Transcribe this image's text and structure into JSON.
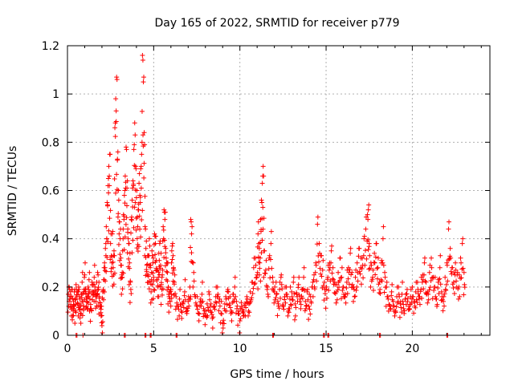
{
  "chart_data": {
    "type": "scatter",
    "title": "Day 165 of 2022, SRMTID for receiver p779",
    "xlabel": "GPS time / hours",
    "ylabel": "SRMTID / TECUs",
    "xlim": [
      0,
      24.5
    ],
    "ylim": [
      0,
      1.2
    ],
    "xticks": [
      0,
      5,
      10,
      15,
      20
    ],
    "xtick_labels": [
      "0",
      "5",
      "10",
      "15",
      "20"
    ],
    "yticks": [
      0,
      0.2,
      0.4,
      0.6,
      0.8,
      1.0,
      1.2
    ],
    "ytick_labels": [
      "0",
      "0.2",
      "0.4",
      "0.6",
      "0.8",
      "1",
      "1.2"
    ],
    "grid": true,
    "marker": "+",
    "marker_color": "#ff0000",
    "series": [
      {
        "name": "SRMTID",
        "points": [
          [
            0.05,
            0.17
          ],
          [
            0.1,
            0.2
          ],
          [
            0.15,
            0.15
          ],
          [
            0.2,
            0.12
          ],
          [
            0.25,
            0.19
          ],
          [
            0.3,
            0.08
          ],
          [
            0.35,
            0.14
          ],
          [
            0.4,
            0.18
          ],
          [
            0.45,
            0.1
          ],
          [
            0.5,
            0.21
          ],
          [
            0.55,
            0.16
          ],
          [
            0.6,
            0.13
          ],
          [
            0.65,
            0.2
          ],
          [
            0.7,
            0.12
          ],
          [
            0.75,
            0.09
          ],
          [
            0.8,
            0.17
          ],
          [
            0.85,
            0.22
          ],
          [
            0.9,
            0.14
          ],
          [
            0.95,
            0.18
          ],
          [
            1.0,
            0.25
          ],
          [
            1.05,
            0.19
          ],
          [
            1.1,
            0.12
          ],
          [
            1.15,
            0.16
          ],
          [
            1.2,
            0.2
          ],
          [
            1.25,
            0.23
          ],
          [
            1.3,
            0.15
          ],
          [
            1.35,
            0.11
          ],
          [
            1.4,
            0.18
          ],
          [
            1.45,
            0.21
          ],
          [
            1.5,
            0.17
          ],
          [
            1.55,
            0.24
          ],
          [
            1.6,
            0.2
          ],
          [
            1.65,
            0.14
          ],
          [
            1.7,
            0.22
          ],
          [
            1.75,
            0.26
          ],
          [
            1.8,
            0.19
          ],
          [
            1.85,
            0.16
          ],
          [
            1.9,
            0.12
          ],
          [
            1.95,
            0.08
          ],
          [
            2.0,
            0.04
          ],
          [
            2.05,
            0.18
          ],
          [
            2.1,
            0.23
          ],
          [
            2.15,
            0.3
          ],
          [
            2.2,
            0.36
          ],
          [
            2.25,
            0.45
          ],
          [
            2.3,
            0.55
          ],
          [
            2.35,
            0.62
          ],
          [
            2.4,
            0.7
          ],
          [
            2.45,
            0.75
          ],
          [
            2.5,
            0.38
          ],
          [
            2.55,
            0.33
          ],
          [
            2.6,
            0.42
          ],
          [
            2.65,
            0.28
          ],
          [
            2.7,
            0.35
          ],
          [
            2.75,
            0.86
          ],
          [
            2.8,
            0.98
          ],
          [
            2.85,
            1.07
          ],
          [
            2.9,
            0.73
          ],
          [
            2.95,
            0.6
          ],
          [
            3.0,
            0.47
          ],
          [
            3.05,
            0.4
          ],
          [
            3.1,
            0.32
          ],
          [
            3.15,
            0.25
          ],
          [
            3.2,
            0.35
          ],
          [
            3.25,
            0.5
          ],
          [
            3.3,
            0.58
          ],
          [
            3.35,
            0.66
          ],
          [
            3.4,
            0.78
          ],
          [
            3.45,
            0.61
          ],
          [
            3.5,
            0.44
          ],
          [
            3.55,
            0.38
          ],
          [
            3.6,
            0.3
          ],
          [
            3.65,
            0.22
          ],
          [
            3.7,
            0.48
          ],
          [
            3.75,
            0.56
          ],
          [
            3.8,
            0.64
          ],
          [
            3.85,
            0.77
          ],
          [
            3.9,
            0.88
          ],
          [
            3.95,
            0.7
          ],
          [
            4.0,
            0.57
          ],
          [
            4.05,
            0.49
          ],
          [
            4.1,
            0.52
          ],
          [
            4.15,
            0.63
          ],
          [
            4.2,
            0.58
          ],
          [
            4.25,
            0.69
          ],
          [
            4.3,
            0.75
          ],
          [
            4.35,
            1.16
          ],
          [
            4.4,
            1.05
          ],
          [
            4.45,
            0.84
          ],
          [
            4.5,
            0.45
          ],
          [
            4.55,
            0.36
          ],
          [
            4.6,
            0.29
          ],
          [
            4.65,
            0.33
          ],
          [
            4.7,
            0.25
          ],
          [
            4.75,
            0.4
          ],
          [
            4.8,
            0.28
          ],
          [
            4.85,
            0.18
          ],
          [
            4.9,
            0.35
          ],
          [
            4.95,
            0.3
          ],
          [
            5.0,
            0.24
          ],
          [
            5.05,
            0.42
          ],
          [
            5.1,
            0.38
          ],
          [
            5.15,
            0.31
          ],
          [
            5.2,
            0.27
          ],
          [
            5.25,
            0.2
          ],
          [
            5.3,
            0.34
          ],
          [
            5.35,
            0.38
          ],
          [
            5.4,
            0.29
          ],
          [
            5.45,
            0.21
          ],
          [
            5.5,
            0.25
          ],
          [
            5.55,
            0.45
          ],
          [
            5.6,
            0.52
          ],
          [
            5.65,
            0.48
          ],
          [
            5.7,
            0.36
          ],
          [
            5.75,
            0.3
          ],
          [
            5.8,
            0.26
          ],
          [
            5.85,
            0.2
          ],
          [
            5.9,
            0.17
          ],
          [
            5.95,
            0.14
          ],
          [
            6.0,
            0.19
          ],
          [
            6.05,
            0.35
          ],
          [
            6.1,
            0.38
          ],
          [
            6.15,
            0.28
          ],
          [
            6.2,
            0.22
          ],
          [
            6.3,
            0.16
          ],
          [
            6.4,
            0.12
          ],
          [
            6.5,
            0.15
          ],
          [
            6.6,
            0.1
          ],
          [
            6.7,
            0.13
          ],
          [
            6.8,
            0.18
          ],
          [
            6.9,
            0.11
          ],
          [
            7.0,
            0.14
          ],
          [
            7.1,
            0.2
          ],
          [
            7.15,
            0.48
          ],
          [
            7.2,
            0.42
          ],
          [
            7.3,
            0.3
          ],
          [
            7.4,
            0.16
          ],
          [
            7.5,
            0.12
          ],
          [
            7.6,
            0.09
          ],
          [
            7.7,
            0.14
          ],
          [
            7.8,
            0.17
          ],
          [
            7.9,
            0.11
          ],
          [
            8.0,
            0.08
          ],
          [
            8.1,
            0.13
          ],
          [
            8.2,
            0.18
          ],
          [
            8.3,
            0.1
          ],
          [
            8.4,
            0.07
          ],
          [
            8.5,
            0.12
          ],
          [
            8.6,
            0.16
          ],
          [
            8.7,
            0.2
          ],
          [
            8.8,
            0.14
          ],
          [
            8.9,
            0.09
          ],
          [
            9.0,
            0.05
          ],
          [
            9.1,
            0.11
          ],
          [
            9.2,
            0.15
          ],
          [
            9.3,
            0.19
          ],
          [
            9.4,
            0.13
          ],
          [
            9.5,
            0.1
          ],
          [
            9.6,
            0.17
          ],
          [
            9.7,
            0.2
          ],
          [
            9.8,
            0.14
          ],
          [
            9.9,
            0.09
          ],
          [
            10.0,
            0.06
          ],
          [
            10.1,
            0.12
          ],
          [
            10.2,
            0.08
          ],
          [
            10.3,
            0.13
          ],
          [
            10.4,
            0.16
          ],
          [
            10.5,
            0.1
          ],
          [
            10.6,
            0.18
          ],
          [
            10.7,
            0.22
          ],
          [
            10.8,
            0.28
          ],
          [
            10.9,
            0.32
          ],
          [
            11.0,
            0.25
          ],
          [
            11.05,
            0.42
          ],
          [
            11.1,
            0.38
          ],
          [
            11.15,
            0.3
          ],
          [
            11.2,
            0.48
          ],
          [
            11.25,
            0.56
          ],
          [
            11.3,
            0.63
          ],
          [
            11.35,
            0.7
          ],
          [
            11.4,
            0.35
          ],
          [
            11.5,
            0.27
          ],
          [
            11.6,
            0.2
          ],
          [
            11.7,
            0.32
          ],
          [
            11.8,
            0.38
          ],
          [
            11.9,
            0.24
          ],
          [
            12.0,
            0.18
          ],
          [
            12.1,
            0.22
          ],
          [
            12.2,
            0.14
          ],
          [
            12.3,
            0.19
          ],
          [
            12.4,
            0.25
          ],
          [
            12.5,
            0.12
          ],
          [
            12.6,
            0.16
          ],
          [
            12.7,
            0.2
          ],
          [
            12.8,
            0.1
          ],
          [
            12.9,
            0.15
          ],
          [
            13.0,
            0.18
          ],
          [
            13.1,
            0.22
          ],
          [
            13.2,
            0.13
          ],
          [
            13.3,
            0.17
          ],
          [
            13.4,
            0.21
          ],
          [
            13.5,
            0.15
          ],
          [
            13.6,
            0.19
          ],
          [
            13.7,
            0.24
          ],
          [
            13.8,
            0.14
          ],
          [
            13.9,
            0.18
          ],
          [
            14.0,
            0.12
          ],
          [
            14.1,
            0.16
          ],
          [
            14.2,
            0.2
          ],
          [
            14.3,
            0.25
          ],
          [
            14.4,
            0.3
          ],
          [
            14.5,
            0.46
          ],
          [
            14.6,
            0.38
          ],
          [
            14.7,
            0.33
          ],
          [
            14.8,
            0.27
          ],
          [
            14.9,
            0.22
          ],
          [
            15.0,
            0.19
          ],
          [
            15.1,
            0.24
          ],
          [
            15.2,
            0.3
          ],
          [
            15.3,
            0.35
          ],
          [
            15.4,
            0.28
          ],
          [
            15.5,
            0.22
          ],
          [
            15.6,
            0.18
          ],
          [
            15.7,
            0.26
          ],
          [
            15.8,
            0.32
          ],
          [
            15.9,
            0.24
          ],
          [
            16.0,
            0.2
          ],
          [
            16.1,
            0.16
          ],
          [
            16.2,
            0.22
          ],
          [
            16.3,
            0.28
          ],
          [
            16.4,
            0.34
          ],
          [
            16.5,
            0.26
          ],
          [
            16.6,
            0.2
          ],
          [
            16.7,
            0.24
          ],
          [
            16.8,
            0.3
          ],
          [
            16.9,
            0.36
          ],
          [
            17.0,
            0.28
          ],
          [
            17.1,
            0.32
          ],
          [
            17.2,
            0.4
          ],
          [
            17.3,
            0.44
          ],
          [
            17.4,
            0.5
          ],
          [
            17.45,
            0.52
          ],
          [
            17.5,
            0.38
          ],
          [
            17.6,
            0.3
          ],
          [
            17.7,
            0.24
          ],
          [
            17.8,
            0.34
          ],
          [
            17.9,
            0.38
          ],
          [
            18.0,
            0.28
          ],
          [
            18.1,
            0.22
          ],
          [
            18.2,
            0.3
          ],
          [
            18.3,
            0.4
          ],
          [
            18.4,
            0.26
          ],
          [
            18.5,
            0.2
          ],
          [
            18.6,
            0.15
          ],
          [
            18.7,
            0.12
          ],
          [
            18.8,
            0.18
          ],
          [
            18.9,
            0.14
          ],
          [
            19.0,
            0.1
          ],
          [
            19.1,
            0.16
          ],
          [
            19.2,
            0.2
          ],
          [
            19.3,
            0.13
          ],
          [
            19.4,
            0.17
          ],
          [
            19.5,
            0.11
          ],
          [
            19.6,
            0.15
          ],
          [
            19.7,
            0.19
          ],
          [
            19.8,
            0.12
          ],
          [
            19.9,
            0.16
          ],
          [
            20.0,
            0.2
          ],
          [
            20.1,
            0.14
          ],
          [
            20.2,
            0.18
          ],
          [
            20.3,
            0.22
          ],
          [
            20.4,
            0.15
          ],
          [
            20.5,
            0.19
          ],
          [
            20.6,
            0.25
          ],
          [
            20.7,
            0.3
          ],
          [
            20.8,
            0.22
          ],
          [
            20.9,
            0.18
          ],
          [
            21.0,
            0.26
          ],
          [
            21.1,
            0.32
          ],
          [
            21.2,
            0.24
          ],
          [
            21.3,
            0.2
          ],
          [
            21.4,
            0.15
          ],
          [
            21.5,
            0.22
          ],
          [
            21.6,
            0.28
          ],
          [
            21.7,
            0.18
          ],
          [
            21.8,
            0.14
          ],
          [
            21.9,
            0.24
          ],
          [
            22.0,
            0.3
          ],
          [
            22.1,
            0.44
          ],
          [
            22.2,
            0.36
          ],
          [
            22.3,
            0.28
          ],
          [
            22.4,
            0.22
          ],
          [
            22.5,
            0.3
          ],
          [
            22.6,
            0.25
          ],
          [
            22.7,
            0.2
          ],
          [
            22.8,
            0.32
          ],
          [
            22.9,
            0.38
          ],
          [
            23.0,
            0.26
          ]
        ],
        "near_zero_x": [
          0.5,
          0.55,
          0.9,
          3.3,
          3.35,
          4.5,
          4.55,
          4.8,
          4.85,
          6.3,
          6.35,
          11.9,
          11.95,
          14.85,
          14.9,
          15.1,
          15.15,
          18.1,
          18.15,
          22.0,
          22.05
        ]
      }
    ]
  }
}
